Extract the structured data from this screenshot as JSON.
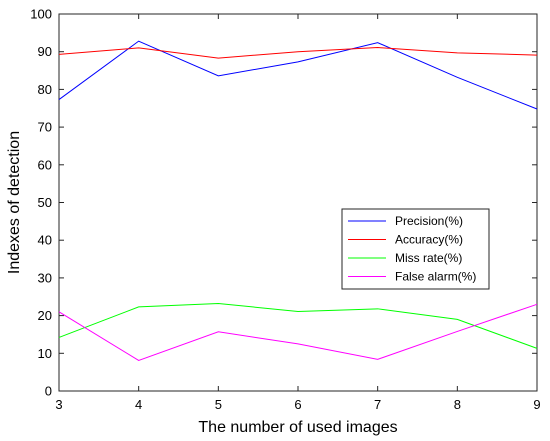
{
  "chart_data": {
    "type": "line",
    "title": "",
    "xlabel": "The number of used images",
    "ylabel": "Indexes of detection",
    "x": [
      3,
      4,
      5,
      6,
      7,
      8,
      9
    ],
    "xlim": [
      3,
      9
    ],
    "ylim": [
      0,
      100
    ],
    "xticks": [
      "3",
      "4",
      "5",
      "6",
      "7",
      "8",
      "9"
    ],
    "yticks": [
      "0",
      "10",
      "20",
      "30",
      "40",
      "50",
      "60",
      "70",
      "80",
      "90",
      "100"
    ],
    "grid": false,
    "legend_position": "right-middle",
    "series": [
      {
        "name": "Precision(%)",
        "color": "#0000ff",
        "values": [
          77.3,
          92.8,
          83.6,
          87.3,
          92.4,
          83.2,
          74.8
        ]
      },
      {
        "name": "Accuracy(%)",
        "color": "#ff0000",
        "values": [
          89.3,
          91.0,
          88.3,
          90.0,
          91.1,
          89.7,
          89.1
        ]
      },
      {
        "name": "Miss rate(%)",
        "color": "#00ff00",
        "values": [
          14.2,
          22.3,
          23.2,
          21.1,
          21.8,
          19.0,
          11.3
        ]
      },
      {
        "name": "False alarm(%)",
        "color": "#ff00ff",
        "values": [
          21.0,
          8.1,
          15.7,
          12.5,
          8.4,
          15.8,
          23.0
        ]
      }
    ]
  }
}
